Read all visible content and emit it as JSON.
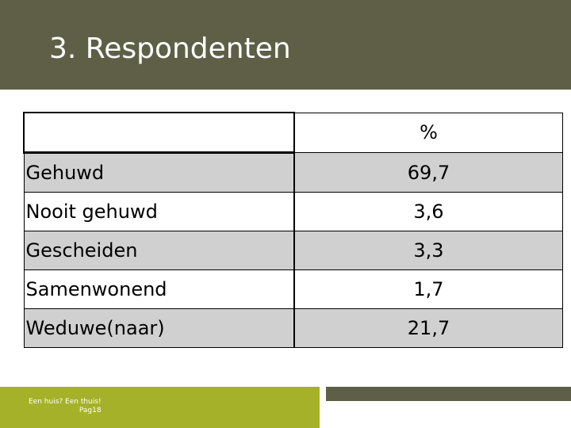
{
  "slide": {
    "title": "3. Respondenten"
  },
  "table": {
    "header": {
      "label": "",
      "value": "%"
    },
    "rows": [
      {
        "label": "Gehuwd",
        "value": "69,7"
      },
      {
        "label": "Nooit gehuwd",
        "value": "3,6"
      },
      {
        "label": "Gescheiden",
        "value": "3,3"
      },
      {
        "label": "Samenwonend",
        "value": "1,7"
      },
      {
        "label": "Weduwe(naar)",
        "value": "21,7"
      }
    ]
  },
  "footer": {
    "tagline": "Een huis? Een thuis!",
    "page": "Pag18"
  },
  "colors": {
    "header_bg": "#5f5f47",
    "footer_accent": "#a6b12a",
    "row_shade": "#d0d0d0"
  }
}
